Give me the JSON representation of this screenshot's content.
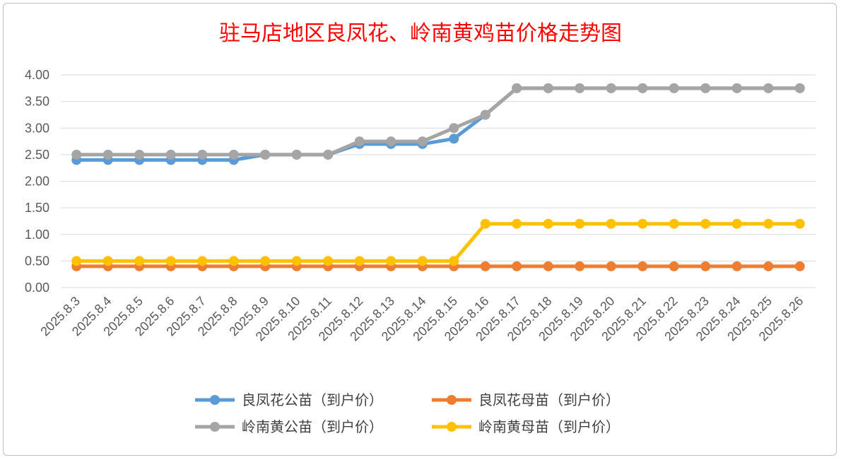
{
  "chart_data": {
    "type": "line",
    "title": "驻马店地区良凤花、岭南黄鸡苗价格走势图",
    "xlabel": "",
    "ylabel": "",
    "ylim": [
      0,
      4
    ],
    "y_ticks": [
      "0.00",
      "0.50",
      "1.00",
      "1.50",
      "2.00",
      "2.50",
      "3.00",
      "3.50",
      "4.00"
    ],
    "grid": true,
    "legend_position": "bottom",
    "categories": [
      "2025.8.3",
      "2025.8.4",
      "2025.8.5",
      "2025.8.6",
      "2025.8.7",
      "2025.8.8",
      "2025.8.9",
      "2025.8.10",
      "2025.8.11",
      "2025.8.12",
      "2025.8.13",
      "2025.8.14",
      "2025.8.15",
      "2025.8.16",
      "2025.8.17",
      "2025.8.18",
      "2025.8.19",
      "2025.8.20",
      "2025.8.21",
      "2025.8.22",
      "2025.8.23",
      "2025.8.24",
      "2025.8.25",
      "2025.8.26"
    ],
    "series": [
      {
        "name": "良凤花公苗（到户价）",
        "color": "#5b9bd5",
        "values": [
          2.4,
          2.4,
          2.4,
          2.4,
          2.4,
          2.4,
          2.5,
          2.5,
          2.5,
          2.7,
          2.7,
          2.7,
          2.8,
          3.25,
          3.75,
          3.75,
          3.75,
          3.75,
          3.75,
          3.75,
          3.75,
          3.75,
          3.75,
          3.75
        ]
      },
      {
        "name": "良凤花母苗（到户价）",
        "color": "#ed7d31",
        "values": [
          0.4,
          0.4,
          0.4,
          0.4,
          0.4,
          0.4,
          0.4,
          0.4,
          0.4,
          0.4,
          0.4,
          0.4,
          0.4,
          0.4,
          0.4,
          0.4,
          0.4,
          0.4,
          0.4,
          0.4,
          0.4,
          0.4,
          0.4,
          0.4
        ]
      },
      {
        "name": "岭南黄公苗（到户价）",
        "color": "#a5a5a5",
        "values": [
          2.5,
          2.5,
          2.5,
          2.5,
          2.5,
          2.5,
          2.5,
          2.5,
          2.5,
          2.75,
          2.75,
          2.75,
          3.0,
          3.25,
          3.75,
          3.75,
          3.75,
          3.75,
          3.75,
          3.75,
          3.75,
          3.75,
          3.75,
          3.75
        ]
      },
      {
        "name": "岭南黄母苗（到户价）",
        "color": "#ffc000",
        "values": [
          0.5,
          0.5,
          0.5,
          0.5,
          0.5,
          0.5,
          0.5,
          0.5,
          0.5,
          0.5,
          0.5,
          0.5,
          0.5,
          1.2,
          1.2,
          1.2,
          1.2,
          1.2,
          1.2,
          1.2,
          1.2,
          1.2,
          1.2,
          1.2
        ]
      }
    ]
  }
}
